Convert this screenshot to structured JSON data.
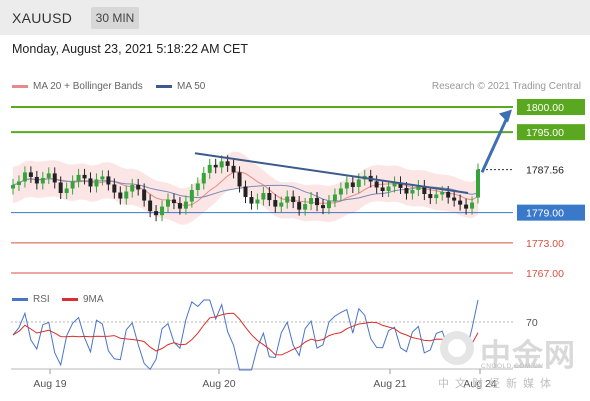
{
  "header": {
    "symbol": "XAUUSD",
    "timeframe": "30 MIN"
  },
  "datetime": "Monday, August 23, 2021 5:18:22 AM CET",
  "legend": {
    "ma20_label": "MA 20 + Bollinger Bands",
    "ma50_label": "MA 50",
    "ma20_color": "#e88a8a",
    "ma50_color": "#3d5a8c",
    "rsi_label": "RSI",
    "rsi9_label": "9MA",
    "rsi_color": "#4a74c9",
    "rsi9_color": "#d9302c"
  },
  "copyright": "Research © 2021 Trading Central",
  "watermark": {
    "cn": "中金网",
    "en": "CNGOLD.COM.CN",
    "sub": "中文财经新媒体"
  },
  "chart_data": [
    {
      "type": "candlestick",
      "symbol": "XAUUSD",
      "timeframe": "30 MIN",
      "y_range": [
        1765,
        1803
      ],
      "x_tick_labels": [
        "Aug 19",
        "Aug 20",
        "Aug 21",
        "Aug 24"
      ],
      "current_price": {
        "value": 1787.56,
        "label": "1787.56"
      },
      "levels": [
        {
          "value": 1800.0,
          "label": "1800.00",
          "color": "#5aa820",
          "kind": "resistance"
        },
        {
          "value": 1795.0,
          "label": "1795.00",
          "color": "#5aa820",
          "kind": "resistance"
        },
        {
          "value": 1779.0,
          "label": "1779.00",
          "color": "#3a78c9",
          "kind": "pivot"
        },
        {
          "value": 1773.0,
          "label": "1773.00",
          "color": "#d85040",
          "kind": "support"
        },
        {
          "value": 1767.0,
          "label": "1767.00",
          "color": "#d85040",
          "kind": "support"
        }
      ],
      "trendline": {
        "from_price": 1790.8,
        "to_price": 1782.9
      },
      "forecast_arrow": {
        "from_price": 1787.0,
        "to_price": 1799.5
      },
      "close": [
        1784.5,
        1785.2,
        1787.0,
        1786.1,
        1784.8,
        1785.9,
        1786.8,
        1785.0,
        1782.9,
        1783.8,
        1785.2,
        1786.5,
        1785.8,
        1784.2,
        1785.6,
        1786.2,
        1784.6,
        1783.0,
        1781.8,
        1783.2,
        1784.5,
        1783.6,
        1781.4,
        1779.3,
        1778.5,
        1780.2,
        1781.6,
        1780.9,
        1779.8,
        1781.2,
        1783.5,
        1784.8,
        1786.9,
        1788.5,
        1788.0,
        1789.2,
        1788.3,
        1787.0,
        1784.2,
        1782.1,
        1780.8,
        1781.6,
        1782.9,
        1781.5,
        1780.2,
        1781.0,
        1782.2,
        1781.1,
        1779.6,
        1780.7,
        1781.9,
        1780.5,
        1779.9,
        1781.3,
        1782.6,
        1783.8,
        1785.0,
        1784.1,
        1785.6,
        1786.3,
        1785.2,
        1784.0,
        1783.3,
        1784.2,
        1785.0,
        1783.9,
        1782.8,
        1783.5,
        1784.3,
        1782.7,
        1781.9,
        1782.6,
        1783.1,
        1782.0,
        1781.4,
        1780.6,
        1779.8,
        1781.0,
        1787.56
      ],
      "open": [
        1783.8,
        1784.5,
        1785.2,
        1787.0,
        1786.1,
        1784.8,
        1785.9,
        1786.8,
        1785.0,
        1782.9,
        1783.8,
        1785.2,
        1786.5,
        1785.8,
        1784.2,
        1785.6,
        1786.2,
        1784.6,
        1783.0,
        1781.8,
        1783.2,
        1784.5,
        1783.6,
        1781.4,
        1779.3,
        1778.5,
        1780.2,
        1781.6,
        1780.9,
        1779.8,
        1781.2,
        1783.5,
        1784.8,
        1786.9,
        1788.5,
        1788.0,
        1789.2,
        1788.3,
        1787.0,
        1784.2,
        1782.1,
        1780.8,
        1781.6,
        1782.9,
        1781.5,
        1780.2,
        1781.0,
        1782.2,
        1781.1,
        1779.6,
        1780.7,
        1781.9,
        1780.5,
        1779.9,
        1781.3,
        1782.6,
        1783.8,
        1785.0,
        1784.1,
        1785.6,
        1786.3,
        1785.2,
        1784.0,
        1783.3,
        1784.2,
        1785.0,
        1783.9,
        1782.8,
        1783.5,
        1784.3,
        1782.7,
        1781.9,
        1782.6,
        1783.1,
        1782.0,
        1781.4,
        1780.6,
        1779.8,
        1782.0
      ],
      "rsi_panel": {
        "label": "RSI",
        "ma_label": "9MA",
        "level_label": "70"
      }
    }
  ]
}
